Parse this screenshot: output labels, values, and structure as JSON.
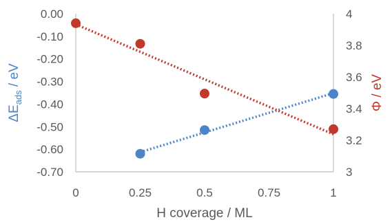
{
  "chart_data": {
    "type": "scatter",
    "xlabel": "H coverage / ML",
    "ylabel_left": {
      "main": "ΔE",
      "sub": "ads",
      "rest": " / eV"
    },
    "ylabel_right": "Φ / eV",
    "x_ticks": [
      "0",
      "0.25",
      "0.5",
      "0.75",
      "1"
    ],
    "y_left_ticks": [
      "0.00",
      "-0.10",
      "-0.20",
      "-0.30",
      "-0.40",
      "-0.50",
      "-0.60",
      "-0.70"
    ],
    "y_right_ticks": [
      "4",
      "3.8",
      "3.6",
      "3.4",
      "3.2",
      "3"
    ],
    "xlim": [
      0,
      1
    ],
    "ylim_left": [
      -0.7,
      0.0
    ],
    "ylim_right": [
      3.0,
      4.0
    ],
    "grid": false,
    "legend": "none",
    "series": [
      {
        "axis": "left",
        "color": "#4A86C8",
        "trendline": "linear",
        "points": [
          {
            "x": 0.25,
            "y": -0.62
          },
          {
            "x": 0.5,
            "y": -0.515
          },
          {
            "x": 1.0,
            "y": -0.355
          }
        ]
      },
      {
        "axis": "right",
        "color": "#C0392B",
        "trendline": "linear",
        "points": [
          {
            "x": 0.0,
            "y": 3.94
          },
          {
            "x": 0.25,
            "y": 3.81
          },
          {
            "x": 0.5,
            "y": 3.495
          },
          {
            "x": 1.0,
            "y": 3.27
          }
        ]
      }
    ]
  }
}
